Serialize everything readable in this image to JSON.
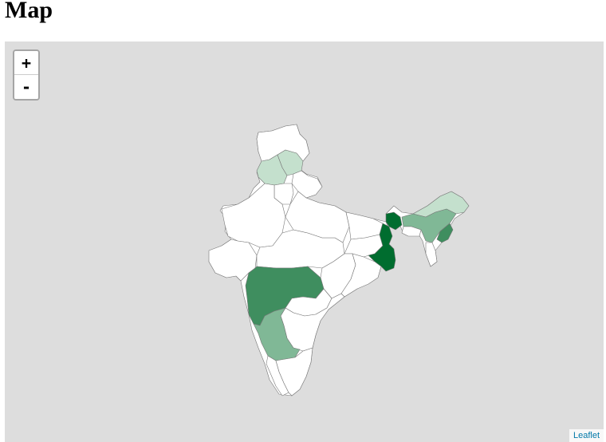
{
  "page": {
    "title": "Map"
  },
  "map": {
    "zoom_in_label": "+",
    "zoom_out_label": "-",
    "attribution": "Leaflet",
    "background_color": "#dddddd",
    "border_color": "#777777",
    "fill_colors": {
      "none": "#ffffff",
      "light": "#c4e0cd",
      "medium_light": "#80b896",
      "medium": "#3f8e5f",
      "dark": "#006d2f"
    }
  }
}
